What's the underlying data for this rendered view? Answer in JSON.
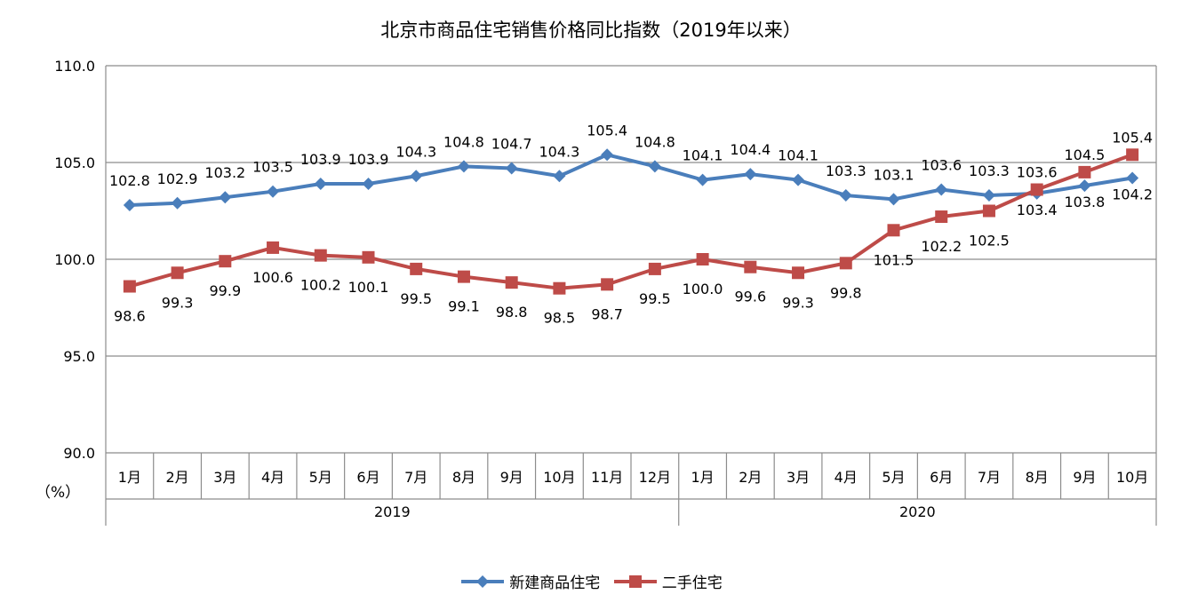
{
  "chart_data": {
    "type": "line",
    "title": "北京市商品住宅销售价格同比指数（2019年以来）",
    "y_unit_label": "（%）",
    "ylim": [
      90.0,
      110.0
    ],
    "y_ticks": [
      "90.0",
      "95.0",
      "100.0",
      "105.0",
      "110.0"
    ],
    "y_tick_values": [
      90,
      95,
      100,
      105,
      110
    ],
    "grid": "horizontal",
    "legend_position": "bottom",
    "categories": [
      "1月",
      "2月",
      "3月",
      "4月",
      "5月",
      "6月",
      "7月",
      "8月",
      "9月",
      "10月",
      "11月",
      "12月",
      "1月",
      "2月",
      "3月",
      "4月",
      "5月",
      "6月",
      "7月",
      "8月",
      "9月",
      "10月"
    ],
    "year_groups": [
      {
        "label": "2019",
        "start": 0,
        "count": 12
      },
      {
        "label": "2020",
        "start": 12,
        "count": 10
      }
    ],
    "series": [
      {
        "name": "新建商品住宅",
        "color": "#4a7ebb",
        "marker": "diamond",
        "values": [
          102.8,
          102.9,
          103.2,
          103.5,
          103.9,
          103.9,
          104.3,
          104.8,
          104.7,
          104.3,
          105.4,
          104.8,
          104.1,
          104.4,
          104.1,
          103.3,
          103.1,
          103.6,
          103.3,
          103.4,
          103.8,
          104.2
        ],
        "labels": [
          "102.8",
          "102.9",
          "103.2",
          "103.5",
          "103.9",
          "103.9",
          "104.3",
          "104.8",
          "104.7",
          "104.3",
          "105.4",
          "104.8",
          "104.1",
          "104.4",
          "104.1",
          "103.3",
          "103.1",
          "103.6",
          "103.3",
          "103.4",
          "103.8",
          "104.2"
        ]
      },
      {
        "name": "二手住宅",
        "color": "#be4b48",
        "marker": "square",
        "values": [
          98.6,
          99.3,
          99.9,
          100.6,
          100.2,
          100.1,
          99.5,
          99.1,
          98.8,
          98.5,
          98.7,
          99.5,
          100.0,
          99.6,
          99.3,
          99.8,
          101.5,
          102.2,
          102.5,
          103.6,
          104.5,
          105.4
        ],
        "labels": [
          "98.6",
          "99.3",
          "99.9",
          "100.6",
          "100.2",
          "100.1",
          "99.5",
          "99.1",
          "98.8",
          "98.5",
          "98.7",
          "99.5",
          "100.0",
          "99.6",
          "99.3",
          "99.8",
          "101.5",
          "102.2",
          "102.5",
          "103.6",
          "104.5",
          "105.4"
        ]
      }
    ]
  }
}
